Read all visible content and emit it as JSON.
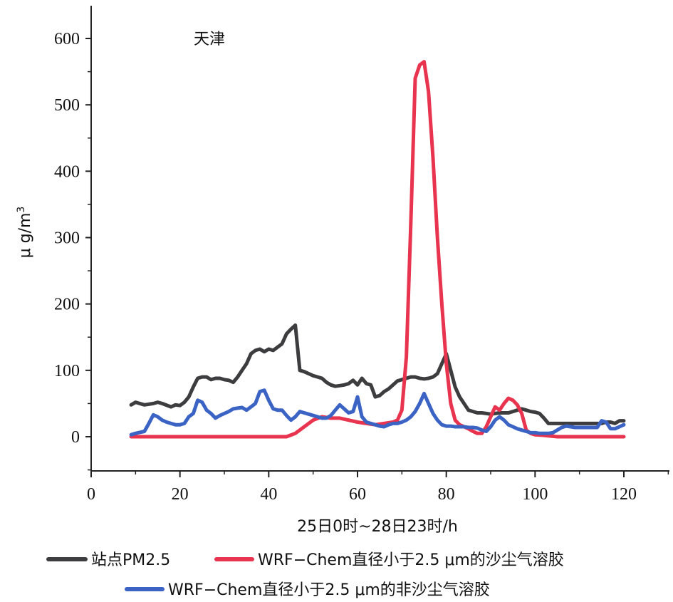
{
  "chart_data": {
    "type": "line",
    "annotation": "天津",
    "xlabel": "25日0时~28日23时/h",
    "ylabel": "μ g/m",
    "ylabel_superscript": "3",
    "xlim": [
      0,
      130
    ],
    "ylim": [
      -50,
      650
    ],
    "xticks": [
      0,
      20,
      40,
      60,
      80,
      100,
      120
    ],
    "yticks": [
      0,
      100,
      200,
      300,
      400,
      500,
      600
    ],
    "grid": false,
    "legend_position": "bottom",
    "series": [
      {
        "name": "站点PM2.5",
        "color": "#3d3d3f",
        "x": [
          9,
          10,
          12,
          14,
          15,
          16,
          18,
          19,
          20,
          21,
          22,
          23,
          24,
          25,
          26,
          27,
          28,
          29,
          30,
          31,
          32,
          33,
          34,
          35,
          36,
          37,
          38,
          39,
          40,
          41,
          42,
          43,
          44,
          45,
          46,
          47,
          48,
          49,
          50,
          51,
          52,
          53,
          54,
          55,
          56,
          57,
          58,
          59,
          60,
          61,
          62,
          63,
          64,
          65,
          66,
          67,
          68,
          69,
          70,
          71,
          72,
          73,
          74,
          75,
          76,
          77,
          78,
          79,
          80,
          81,
          82,
          83,
          84,
          85,
          86,
          87,
          88,
          89,
          90,
          91,
          92,
          93,
          94,
          95,
          96,
          97,
          98,
          99,
          100,
          101,
          102,
          103,
          104,
          105,
          106,
          107,
          108,
          109,
          110,
          111,
          112,
          113,
          114,
          115,
          116,
          117,
          118,
          119,
          120
        ],
        "y": [
          48,
          52,
          48,
          50,
          52,
          50,
          45,
          48,
          47,
          52,
          60,
          75,
          88,
          90,
          90,
          86,
          88,
          88,
          86,
          85,
          82,
          90,
          100,
          110,
          125,
          130,
          132,
          128,
          132,
          130,
          135,
          140,
          155,
          162,
          168,
          100,
          98,
          95,
          92,
          90,
          88,
          82,
          78,
          76,
          77,
          78,
          80,
          85,
          78,
          88,
          80,
          78,
          60,
          62,
          68,
          72,
          78,
          84,
          86,
          88,
          90,
          90,
          88,
          87,
          88,
          90,
          95,
          110,
          125,
          100,
          75,
          60,
          50,
          40,
          38,
          36,
          36,
          35,
          34,
          35,
          36,
          36,
          36,
          38,
          40,
          42,
          40,
          38,
          37,
          35,
          28,
          20,
          20,
          20,
          20,
          20,
          20,
          20,
          20,
          20,
          20,
          20,
          20,
          20,
          22,
          22,
          20,
          24,
          24
        ]
      },
      {
        "name": "WRF−Chem直径小于2.5 μm的沙尘气溶胶",
        "color": "#e8344e",
        "x": [
          9,
          12,
          15,
          20,
          25,
          30,
          35,
          40,
          44,
          46,
          48,
          50,
          52,
          54,
          56,
          58,
          60,
          62,
          64,
          66,
          68,
          69,
          70,
          71,
          72,
          73,
          74,
          75,
          76,
          77,
          78,
          79,
          80,
          81,
          82,
          83,
          84,
          85,
          86,
          87,
          88,
          89,
          90,
          91,
          92,
          93,
          94,
          95,
          96,
          97,
          98,
          99,
          100,
          102,
          105,
          110,
          115,
          120
        ],
        "y": [
          0,
          0,
          0,
          0,
          0,
          0,
          0,
          0,
          0,
          5,
          15,
          25,
          30,
          28,
          28,
          25,
          22,
          20,
          18,
          20,
          22,
          25,
          40,
          120,
          320,
          540,
          560,
          565,
          520,
          420,
          300,
          200,
          110,
          50,
          25,
          18,
          15,
          12,
          8,
          5,
          5,
          15,
          30,
          45,
          40,
          50,
          58,
          55,
          48,
          35,
          10,
          5,
          3,
          2,
          0,
          0,
          0,
          0
        ]
      },
      {
        "name": "WRF−Chem直径小于2.5 μm的非沙尘气溶胶",
        "color": "#3a63c4",
        "x": [
          9,
          10,
          12,
          13,
          14,
          15,
          16,
          17,
          18,
          19,
          20,
          21,
          22,
          23,
          24,
          25,
          26,
          27,
          28,
          29,
          30,
          31,
          32,
          33,
          34,
          35,
          36,
          37,
          38,
          39,
          40,
          41,
          42,
          43,
          44,
          45,
          46,
          47,
          48,
          49,
          50,
          51,
          52,
          53,
          54,
          55,
          56,
          57,
          58,
          59,
          60,
          61,
          62,
          63,
          64,
          65,
          66,
          67,
          68,
          69,
          70,
          71,
          72,
          73,
          74,
          75,
          76,
          77,
          78,
          79,
          80,
          81,
          82,
          83,
          84,
          85,
          86,
          87,
          88,
          89,
          90,
          91,
          92,
          93,
          94,
          95,
          96,
          97,
          98,
          99,
          100,
          101,
          102,
          103,
          104,
          105,
          106,
          107,
          108,
          109,
          110,
          111,
          112,
          113,
          114,
          115,
          116,
          117,
          118,
          119,
          120
        ],
        "y": [
          3,
          5,
          8,
          20,
          33,
          30,
          25,
          22,
          20,
          18,
          18,
          20,
          30,
          35,
          55,
          52,
          40,
          35,
          28,
          32,
          35,
          38,
          42,
          43,
          44,
          40,
          45,
          50,
          68,
          70,
          55,
          42,
          40,
          40,
          32,
          25,
          30,
          38,
          36,
          34,
          32,
          30,
          28,
          28,
          32,
          40,
          48,
          42,
          36,
          38,
          60,
          30,
          22,
          20,
          18,
          16,
          15,
          18,
          20,
          20,
          22,
          25,
          30,
          38,
          50,
          65,
          50,
          35,
          25,
          18,
          16,
          16,
          15,
          15,
          15,
          14,
          14,
          13,
          10,
          8,
          15,
          25,
          30,
          25,
          18,
          15,
          12,
          10,
          8,
          6,
          6,
          5,
          5,
          5,
          6,
          10,
          14,
          16,
          15,
          14,
          14,
          14,
          14,
          14,
          14,
          24,
          22,
          12,
          12,
          15,
          18
        ]
      }
    ]
  }
}
